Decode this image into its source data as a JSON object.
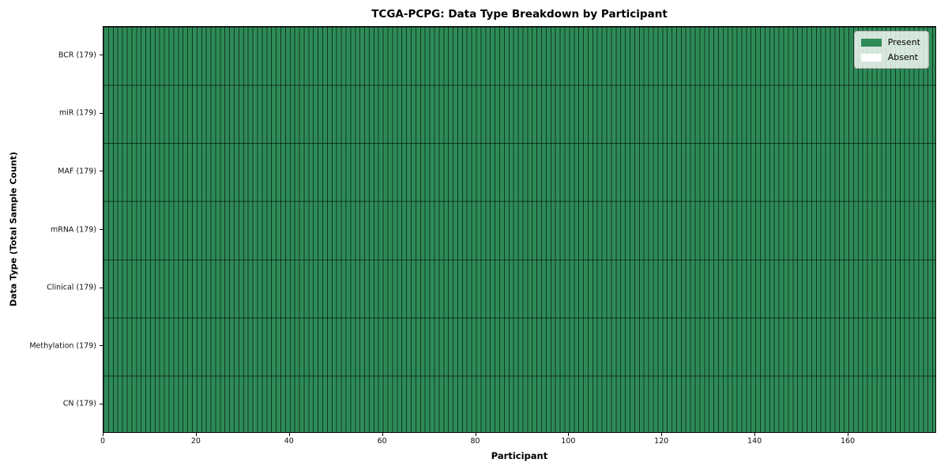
{
  "chart_data": {
    "type": "heatmap",
    "title": "TCGA-PCPG: Data Type Breakdown by Participant",
    "xlabel": "Participant",
    "ylabel": "Data Type (Total Sample Count)",
    "n_participants": 179,
    "xlim": [
      0,
      179
    ],
    "x_ticks": [
      0,
      20,
      40,
      60,
      80,
      100,
      120,
      140,
      160
    ],
    "rows": [
      {
        "label": "BCR (179)",
        "data_type": "BCR",
        "total_sample_count": 179,
        "present_count": 179,
        "absent_count": 0
      },
      {
        "label": "miR (179)",
        "data_type": "miR",
        "total_sample_count": 179,
        "present_count": 179,
        "absent_count": 0
      },
      {
        "label": "MAF (179)",
        "data_type": "MAF",
        "total_sample_count": 179,
        "present_count": 179,
        "absent_count": 0
      },
      {
        "label": "mRNA (179)",
        "data_type": "mRNA",
        "total_sample_count": 179,
        "present_count": 179,
        "absent_count": 0
      },
      {
        "label": "Clinical (179)",
        "data_type": "Clinical",
        "total_sample_count": 179,
        "present_count": 179,
        "absent_count": 0
      },
      {
        "label": "Methylation (179)",
        "data_type": "Methylation",
        "total_sample_count": 179,
        "present_count": 179,
        "absent_count": 0
      },
      {
        "label": "CN (179)",
        "data_type": "CN",
        "total_sample_count": 179,
        "present_count": 179,
        "absent_count": 0
      }
    ],
    "all_cells_present": true,
    "legend": {
      "position": "upper right",
      "entries": [
        {
          "label": "Present",
          "color": "#2e8b57"
        },
        {
          "label": "Absent",
          "color": "#ffffff"
        }
      ]
    },
    "colors": {
      "present": "#2e8b57",
      "absent": "#ffffff",
      "cell_edge": "rgba(0,0,0,0.6)",
      "spine": "#0d0d0d",
      "figure_background": "#ffffff"
    },
    "grid": "cell-borders"
  }
}
